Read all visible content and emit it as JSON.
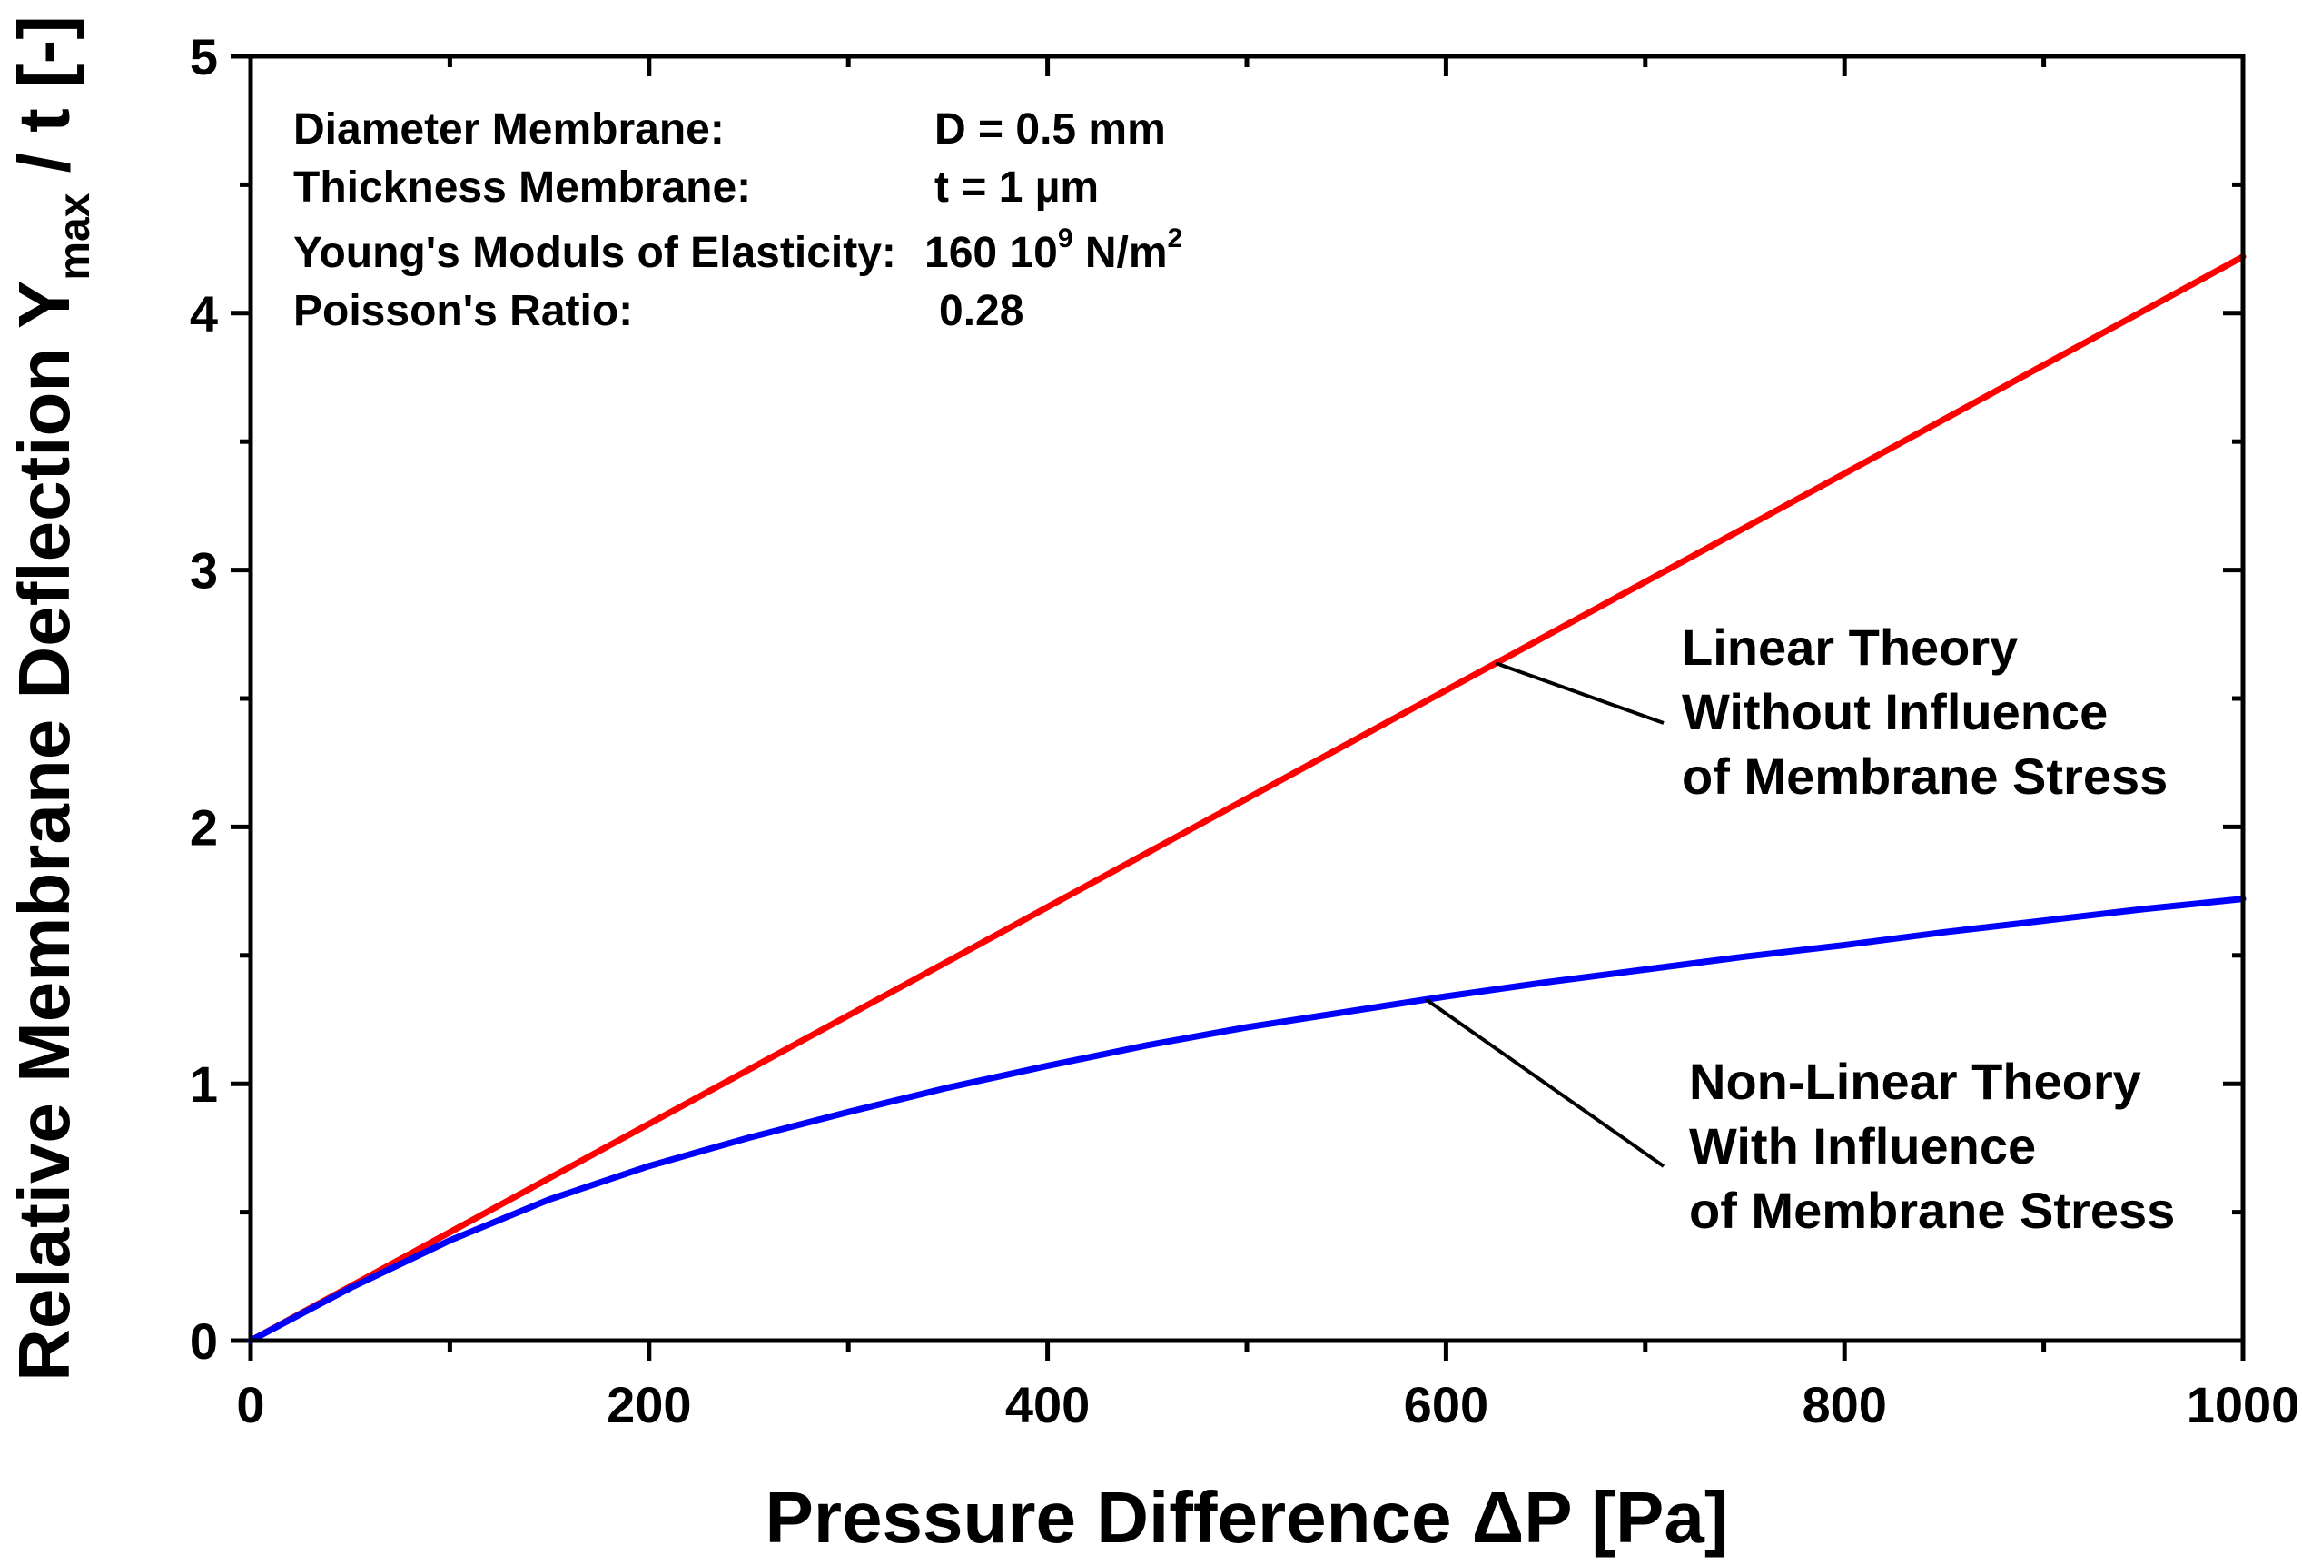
{
  "chart_data": {
    "type": "line",
    "title": "",
    "xlabel": "Pressure Difference ΔP [Pa]",
    "ylabel_main": "Relative Membrane Deflection Y",
    "ylabel_sub": "max",
    "ylabel_tail": " / t [-]",
    "xlim": [
      0,
      1000
    ],
    "ylim": [
      0,
      5
    ],
    "x_ticks": [
      0,
      200,
      400,
      600,
      800,
      1000
    ],
    "x_tick_labels": [
      "0",
      "200",
      "400",
      "600",
      "800",
      "1000"
    ],
    "x_minor_ticks": [
      100,
      300,
      500,
      700,
      900
    ],
    "y_ticks": [
      0,
      1,
      2,
      3,
      4,
      5
    ],
    "y_tick_labels": [
      "0",
      "1",
      "2",
      "3",
      "4",
      "5"
    ],
    "y_minor_ticks": [
      0.5,
      1.5,
      2.5,
      3.5,
      4.5
    ],
    "grid": false,
    "series": [
      {
        "name": "Linear Theory Without Influence of Membrane Stress",
        "color": "#ff0000",
        "x": [
          0,
          1000
        ],
        "y": [
          0,
          4.22
        ]
      },
      {
        "name": "Non-Linear Theory With Influence of Membrane Stress",
        "color": "#0000ff",
        "x": [
          0,
          50,
          100,
          150,
          200,
          250,
          300,
          350,
          400,
          450,
          500,
          550,
          600,
          650,
          700,
          750,
          800,
          850,
          900,
          950,
          1000
        ],
        "y": [
          0,
          0.205,
          0.39,
          0.55,
          0.68,
          0.79,
          0.89,
          0.985,
          1.07,
          1.15,
          1.22,
          1.28,
          1.34,
          1.395,
          1.445,
          1.495,
          1.54,
          1.59,
          1.635,
          1.68,
          1.72
        ]
      }
    ],
    "info_box": [
      {
        "label": "Diameter Membrane:",
        "value": "D = 0.5 mm"
      },
      {
        "label": "Thickness Membrane:",
        "value": "t = 1 µm"
      },
      {
        "label": "Young's Moduls of Elasticity:",
        "value": "160 10",
        "value_sup": "9",
        "value_tail": " N/m",
        "value_sup2": "2"
      },
      {
        "label": "Poisson's Ratio:",
        "value": "0.28"
      }
    ],
    "annotations": [
      {
        "lines": [
          "Linear Theory",
          "Without Influence",
          "of Membrane Stress"
        ],
        "points_to": {
          "series": 0,
          "x": 625
        }
      },
      {
        "lines": [
          "Non-Linear Theory",
          "With Influence",
          "of Membrane Stress"
        ],
        "points_to": {
          "series": 1,
          "x": 590
        }
      }
    ]
  }
}
